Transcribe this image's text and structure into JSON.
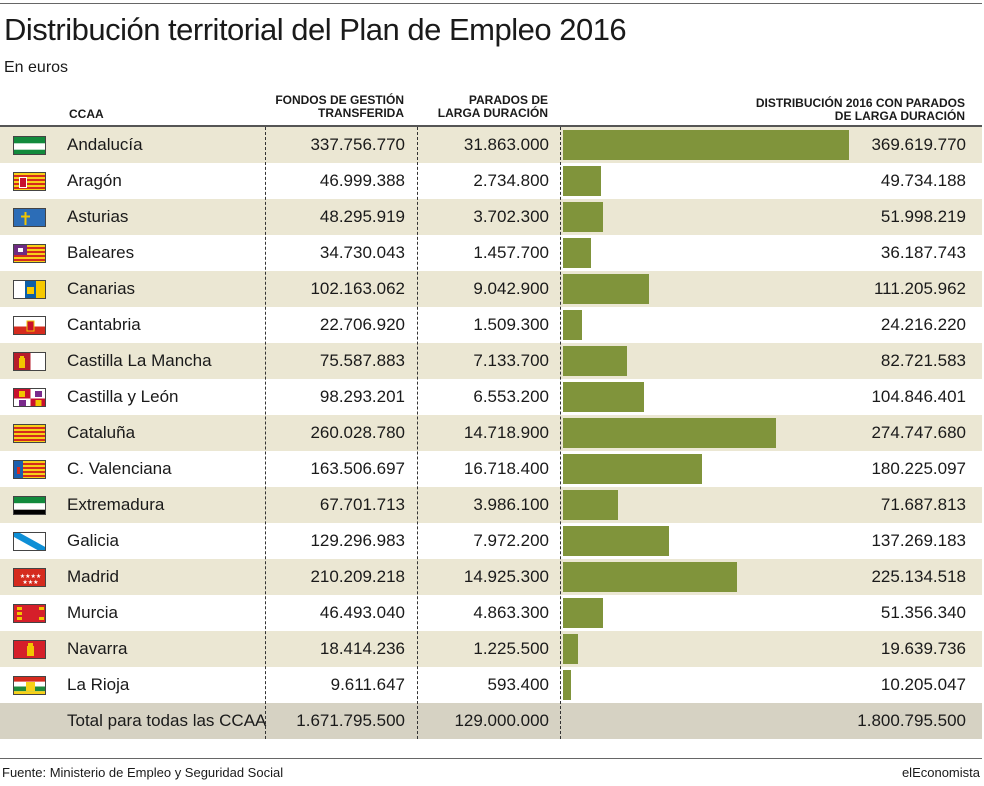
{
  "header": {
    "title": "Distribución territorial del Plan de Empleo 2016",
    "subtitle": "En euros"
  },
  "columns": {
    "ccaa": "CCAA",
    "fondos_1": "FONDOS DE GESTIÓN",
    "fondos_2": "TRANSFERIDA",
    "parados_1": "PARADOS DE",
    "parados_2": "LARGA DURACIÓN",
    "dist_1": "DISTRIBUCIÓN 2016 CON PARADOS",
    "dist_2": "DE LARGA DURACIÓN"
  },
  "chart_data": {
    "type": "bar",
    "orientation": "horizontal",
    "title": "Distribución territorial del Plan de Empleo 2016",
    "subtitle": "En euros",
    "categories": [
      "Andalucía",
      "Aragón",
      "Asturias",
      "Baleares",
      "Canarias",
      "Cantabria",
      "Castilla La Mancha",
      "Castilla y León",
      "Cataluña",
      "C. Valenciana",
      "Extremadura",
      "Galicia",
      "Madrid",
      "Murcia",
      "Navarra",
      "La Rioja"
    ],
    "values": [
      369619770,
      49734188,
      51998219,
      36187743,
      111205962,
      24216220,
      82721583,
      104846401,
      274747680,
      180225097,
      71687813,
      137269183,
      225134518,
      51356340,
      19639736,
      10205047
    ],
    "bar_color": "#80943b",
    "xlim": [
      0,
      369619770
    ],
    "rows": [
      {
        "name": "Andalucía",
        "fondos": "337.756.770",
        "parados": "31.863.000",
        "distribucion": "369.619.770",
        "value": 369619770,
        "flag": "andalucia-flag-icon"
      },
      {
        "name": "Aragón",
        "fondos": "46.999.388",
        "parados": "2.734.800",
        "distribucion": "49.734.188",
        "value": 49734188,
        "flag": "aragon-flag-icon"
      },
      {
        "name": "Asturias",
        "fondos": "48.295.919",
        "parados": "3.702.300",
        "distribucion": "51.998.219",
        "value": 51998219,
        "flag": "asturias-flag-icon"
      },
      {
        "name": "Baleares",
        "fondos": "34.730.043",
        "parados": "1.457.700",
        "distribucion": "36.187.743",
        "value": 36187743,
        "flag": "baleares-flag-icon"
      },
      {
        "name": "Canarias",
        "fondos": "102.163.062",
        "parados": "9.042.900",
        "distribucion": "111.205.962",
        "value": 111205962,
        "flag": "canarias-flag-icon"
      },
      {
        "name": "Cantabria",
        "fondos": "22.706.920",
        "parados": "1.509.300",
        "distribucion": "24.216.220",
        "value": 24216220,
        "flag": "cantabria-flag-icon"
      },
      {
        "name": "Castilla La Mancha",
        "fondos": "75.587.883",
        "parados": "7.133.700",
        "distribucion": "82.721.583",
        "value": 82721583,
        "flag": "castilla-la-mancha-flag-icon"
      },
      {
        "name": "Castilla y León",
        "fondos": "98.293.201",
        "parados": "6.553.200",
        "distribucion": "104.846.401",
        "value": 104846401,
        "flag": "castilla-y-leon-flag-icon"
      },
      {
        "name": "Cataluña",
        "fondos": "260.028.780",
        "parados": "14.718.900",
        "distribucion": "274.747.680",
        "value": 274747680,
        "flag": "cataluna-flag-icon"
      },
      {
        "name": "C. Valenciana",
        "fondos": "163.506.697",
        "parados": "16.718.400",
        "distribucion": "180.225.097",
        "value": 180225097,
        "flag": "valenciana-flag-icon"
      },
      {
        "name": "Extremadura",
        "fondos": "67.701.713",
        "parados": "3.986.100",
        "distribucion": "71.687.813",
        "value": 71687813,
        "flag": "extremadura-flag-icon"
      },
      {
        "name": "Galicia",
        "fondos": "129.296.983",
        "parados": "7.972.200",
        "distribucion": "137.269.183",
        "value": 137269183,
        "flag": "galicia-flag-icon"
      },
      {
        "name": "Madrid",
        "fondos": "210.209.218",
        "parados": "14.925.300",
        "distribucion": "225.134.518",
        "value": 225134518,
        "flag": "madrid-flag-icon"
      },
      {
        "name": "Murcia",
        "fondos": "46.493.040",
        "parados": "4.863.300",
        "distribucion": "51.356.340",
        "value": 51356340,
        "flag": "murcia-flag-icon"
      },
      {
        "name": "Navarra",
        "fondos": "18.414.236",
        "parados": "1.225.500",
        "distribucion": "19.639.736",
        "value": 19639736,
        "flag": "navarra-flag-icon"
      },
      {
        "name": "La Rioja",
        "fondos": "9.611.647",
        "parados": "593.400",
        "distribucion": "10.205.047",
        "value": 10205047,
        "flag": "la-rioja-flag-icon"
      }
    ],
    "total": {
      "name": "Total para todas las CCAA",
      "fondos": "1.671.795.500",
      "parados": "129.000.000",
      "distribucion": "1.800.795.500"
    }
  },
  "footer": {
    "source": "Fuente: Ministerio de Empleo y Seguridad Social",
    "brand": "elEconomista"
  }
}
